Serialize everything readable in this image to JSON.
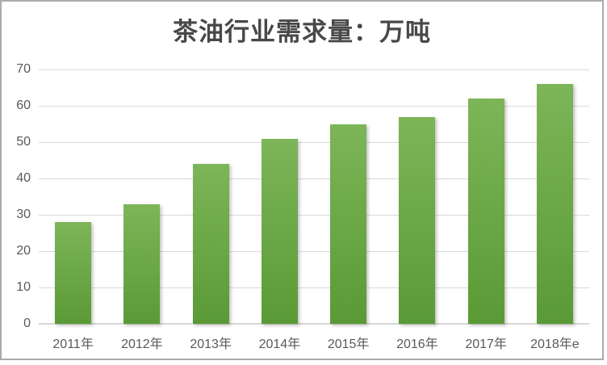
{
  "window": {
    "background": "#ffffff",
    "border_color": "#ababab"
  },
  "chart_data": {
    "type": "bar",
    "title": "茶油行业需求量：万吨",
    "categories": [
      "2011年",
      "2012年",
      "2013年",
      "2014年",
      "2015年",
      "2016年",
      "2017年",
      "2018年e"
    ],
    "values": [
      28,
      33,
      44,
      51,
      55,
      57,
      62,
      66
    ],
    "xlabel": "",
    "ylabel": "",
    "ylim": [
      0,
      70
    ],
    "yticks": [
      0,
      10,
      20,
      30,
      40,
      50,
      60,
      70
    ],
    "grid": true,
    "legend": "none",
    "colors": {
      "bar_gradient_top": "#7db558",
      "bar_gradient_bottom": "#5a9a36",
      "gridline": "#d9d9d9",
      "axis_line": "#d6d6d6",
      "tick_label": "#595959",
      "title": "#484848"
    }
  }
}
